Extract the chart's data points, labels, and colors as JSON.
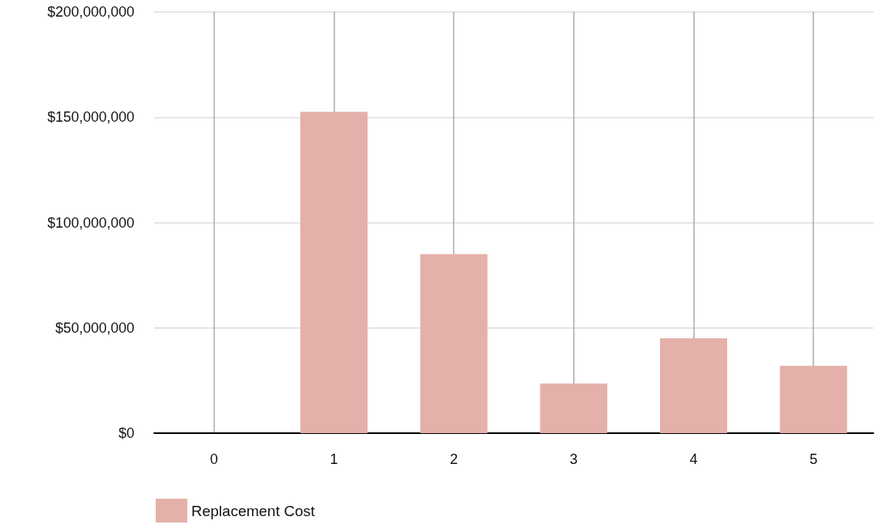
{
  "chart_data": {
    "type": "bar",
    "x": [
      0,
      1,
      2,
      3,
      4,
      5
    ],
    "xlim": [
      -0.5,
      5.5
    ],
    "xticks": [
      0,
      1,
      2,
      3,
      4,
      5
    ],
    "series": [
      {
        "name": "Replacement Cost",
        "color": "#e4b0aa",
        "values": [
          0,
          152500000,
          85000000,
          23500000,
          45000000,
          32000000
        ]
      }
    ],
    "ylim": [
      0,
      200000000
    ],
    "yticks": [
      {
        "value": 0,
        "label": "$0"
      },
      {
        "value": 50000000,
        "label": "$50,000,000"
      },
      {
        "value": 100000000,
        "label": "$100,000,000"
      },
      {
        "value": 150000000,
        "label": "$150,000,000"
      },
      {
        "value": 200000000,
        "label": "$200,000,000"
      }
    ],
    "grid": true,
    "legend": "bottom left"
  }
}
